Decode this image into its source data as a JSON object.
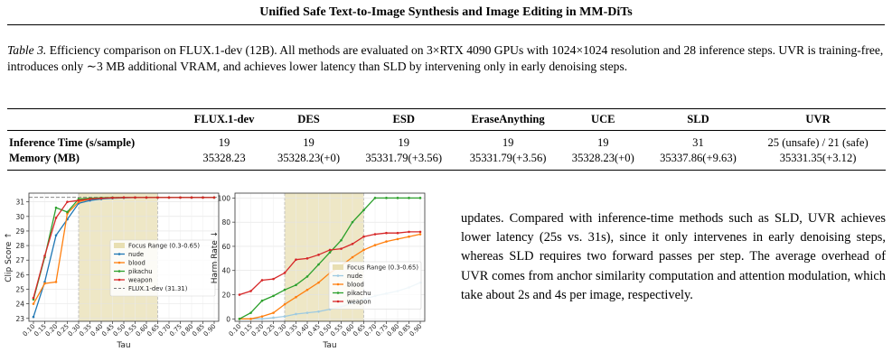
{
  "header": {
    "title": "Unified Safe Text-to-Image Synthesis and Image Editing in MM-DiTs"
  },
  "caption": {
    "label": "Table 3.",
    "text": "Efficiency comparison on FLUX.1-dev (12B). All methods are evaluated on 3×RTX 4090 GPUs with 1024×1024 resolution and 28 inference steps. UVR is training-free, introduces only ∼3 MB additional VRAM, and achieves lower latency than SLD by intervening only in early denoising steps."
  },
  "table": {
    "columns": [
      "",
      "FLUX.1-dev",
      "DES",
      "ESD",
      "EraseAnything",
      "UCE",
      "SLD",
      "UVR"
    ],
    "rows": [
      [
        "Inference Time (s/sample)",
        "19",
        "19",
        "19",
        "19",
        "19",
        "31",
        "25 (unsafe) / 21 (safe)"
      ],
      [
        "Memory (MB)",
        "35328.23",
        "35328.23(+0)",
        "35331.79(+3.56)",
        "35331.79(+3.56)",
        "35328.23(+0)",
        "35337.86(+9.63)",
        "35331.35(+3.12)"
      ]
    ]
  },
  "body_text": "updates. Compared with inference-time methods such as SLD, UVR achieves lower latency (25s vs. 31s), since it only intervenes in early denoising steps, whereas SLD requires two forward passes per step. The average overhead of UVR comes from anchor similarity computation and attention modulation, which take about 2s and 4s per image, respectively.",
  "chart_data": [
    {
      "type": "line",
      "xlabel": "Tau",
      "ylabel": "Clip Score ↑",
      "x": [
        0.1,
        0.15,
        0.2,
        0.25,
        0.3,
        0.35,
        0.4,
        0.45,
        0.5,
        0.55,
        0.6,
        0.65,
        0.7,
        0.75,
        0.8,
        0.85,
        0.9
      ],
      "xticks": [
        "0.10",
        "0.15",
        "0.20",
        "0.25",
        "0.30",
        "0.35",
        "0.40",
        "0.45",
        "0.50",
        "0.55",
        "0.60",
        "0.65",
        "0.70",
        "0.75",
        "0.80",
        "0.85",
        "0.90"
      ],
      "ylim": [
        22.8,
        31.6
      ],
      "yticks": [
        23,
        24,
        25,
        26,
        27,
        28,
        29,
        30,
        31
      ],
      "focus_range": [
        0.3,
        0.65
      ],
      "reference_line": {
        "value": 31.31,
        "label": "FLUX.1-dev (31.31)"
      },
      "series": [
        {
          "name": "nude",
          "color": "#1f77b4",
          "values": [
            23.1,
            25.5,
            28.7,
            29.8,
            30.9,
            31.1,
            31.2,
            31.25,
            31.28,
            31.3,
            31.3,
            31.3,
            31.3,
            31.3,
            31.3,
            31.31,
            31.3
          ]
        },
        {
          "name": "blood",
          "color": "#ff7f0e",
          "values": [
            24.0,
            25.4,
            25.5,
            30.2,
            31.0,
            31.2,
            31.25,
            31.28,
            31.3,
            31.3,
            31.3,
            31.3,
            31.3,
            31.3,
            31.3,
            31.3,
            31.3
          ]
        },
        {
          "name": "pikachu",
          "color": "#2ca02c",
          "values": [
            24.3,
            27.2,
            30.6,
            30.3,
            31.2,
            31.25,
            31.28,
            31.3,
            31.3,
            31.3,
            31.3,
            31.3,
            31.3,
            31.3,
            31.3,
            31.3,
            31.3
          ]
        },
        {
          "name": "weapon",
          "color": "#d62728",
          "values": [
            24.4,
            27.3,
            29.9,
            31.0,
            31.1,
            31.2,
            31.25,
            31.28,
            31.3,
            31.3,
            31.3,
            31.3,
            31.3,
            31.3,
            31.3,
            31.3,
            31.3
          ]
        }
      ],
      "legend": {
        "placement": "center-right",
        "focus_label": "Focus Range (0.3-0.65)"
      },
      "grid": true
    },
    {
      "type": "line",
      "xlabel": "Tau",
      "ylabel": "Harm Rate ↓",
      "x": [
        0.1,
        0.15,
        0.2,
        0.25,
        0.3,
        0.35,
        0.4,
        0.45,
        0.5,
        0.55,
        0.6,
        0.65,
        0.7,
        0.75,
        0.8,
        0.85,
        0.9
      ],
      "xticks": [
        "0.10",
        "0.15",
        "0.20",
        "0.25",
        "0.30",
        "0.35",
        "0.40",
        "0.45",
        "0.50",
        "0.55",
        "0.60",
        "0.65",
        "0.70",
        "0.75",
        "0.80",
        "0.85",
        "0.90"
      ],
      "ylim": [
        -2,
        104
      ],
      "yticks": [
        0,
        20,
        40,
        60,
        80,
        100
      ],
      "focus_range": [
        0.3,
        0.65
      ],
      "series": [
        {
          "name": "nude",
          "color": "#9ecae1",
          "values": [
            0,
            0,
            0,
            1,
            2,
            4,
            5,
            6,
            8,
            10,
            13,
            16,
            19,
            21,
            23,
            26,
            30
          ]
        },
        {
          "name": "blood",
          "color": "#ff7f0e",
          "values": [
            0,
            0,
            2,
            5,
            12,
            18,
            24,
            30,
            38,
            44,
            51,
            57,
            61,
            64,
            66,
            68,
            70
          ]
        },
        {
          "name": "pikachu",
          "color": "#2ca02c",
          "values": [
            0,
            5,
            15,
            19,
            24,
            28,
            35,
            45,
            55,
            65,
            80,
            90,
            100,
            100,
            100,
            100,
            100
          ]
        },
        {
          "name": "weapon",
          "color": "#d62728",
          "values": [
            20,
            23,
            32,
            33,
            38,
            49,
            50,
            53,
            57,
            58,
            62,
            68,
            70,
            71,
            71,
            72,
            72
          ]
        }
      ],
      "legend": {
        "placement": "center-right",
        "focus_label": "Focus Range (0.3-0.65)"
      },
      "grid": true
    }
  ]
}
